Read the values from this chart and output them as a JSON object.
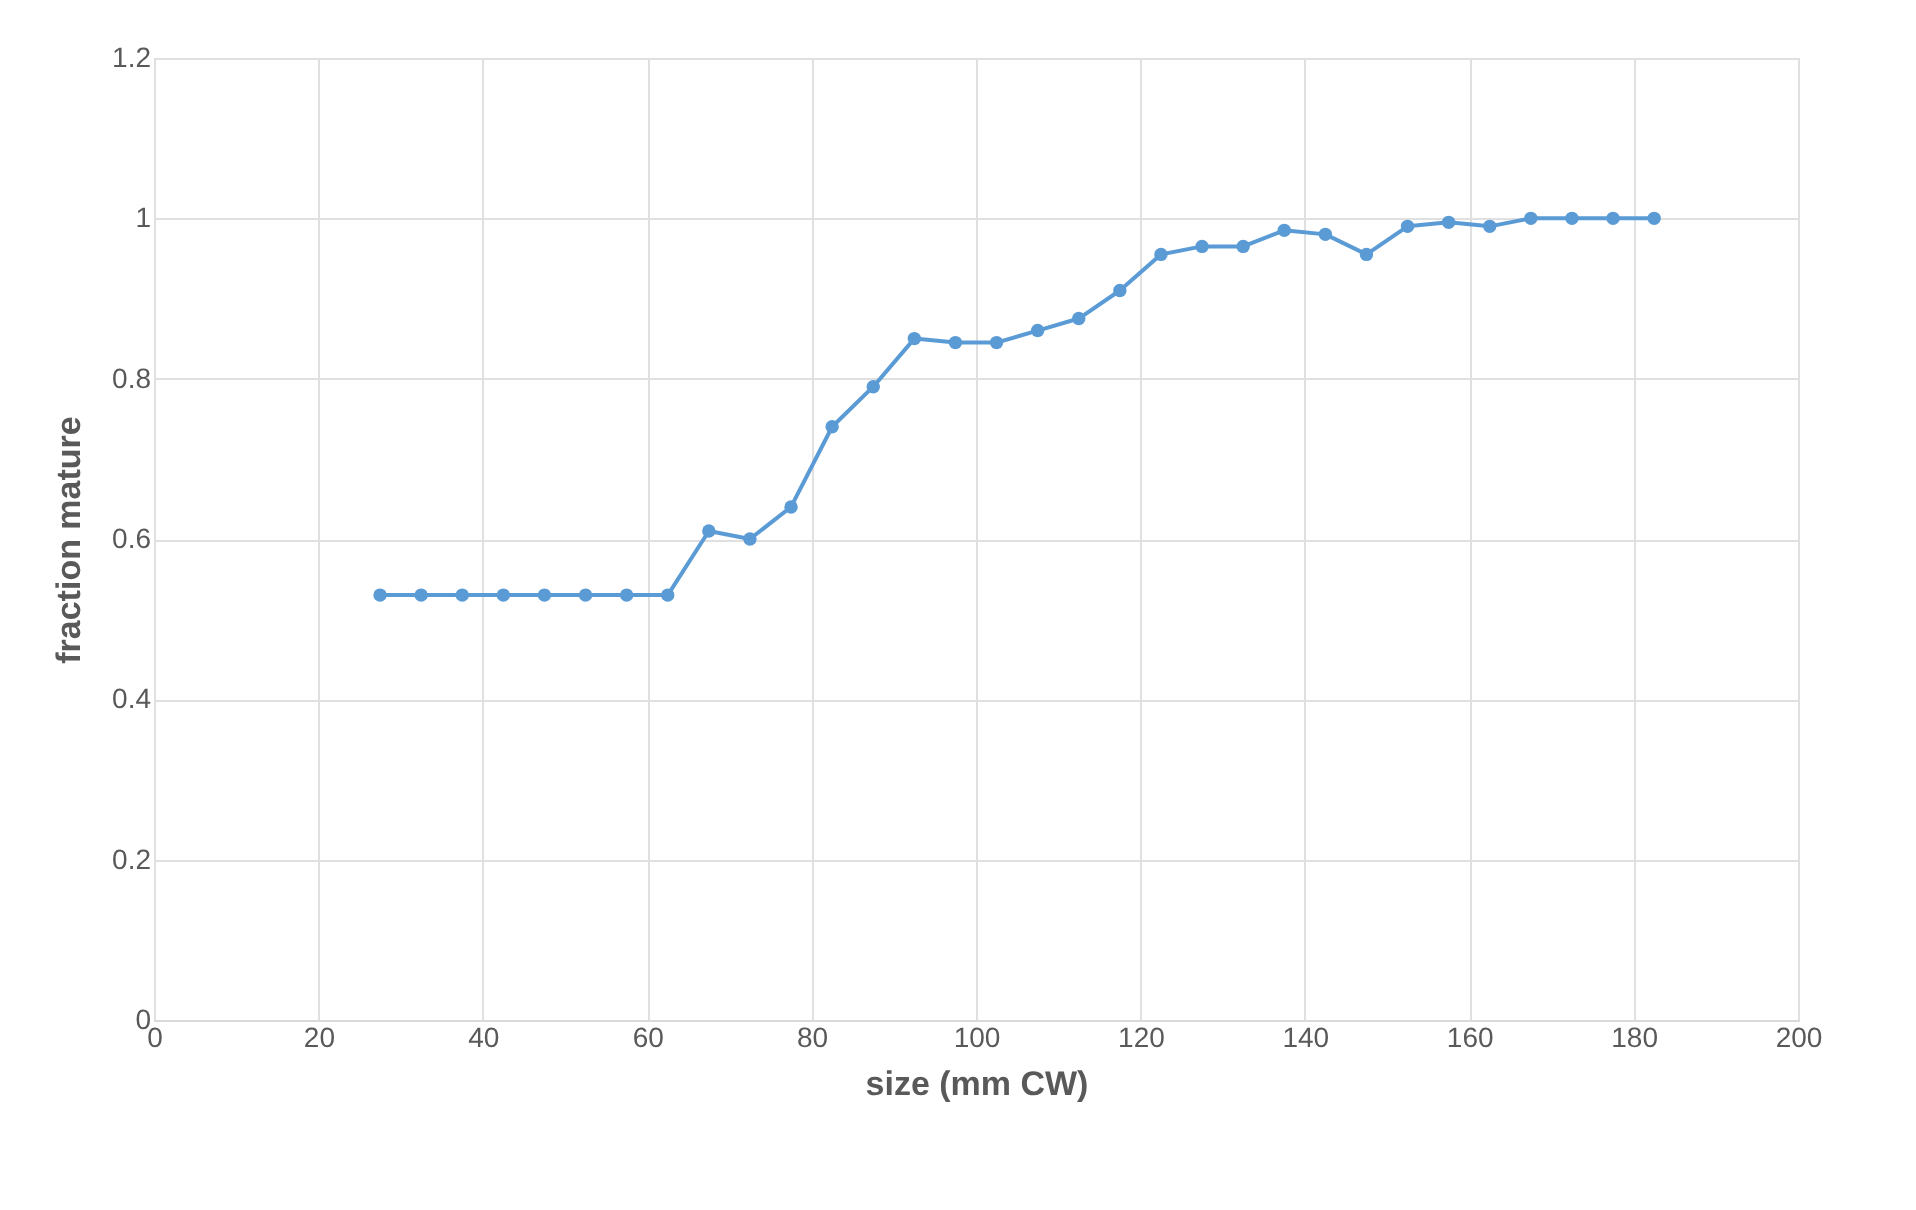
{
  "chart_data": {
    "type": "line",
    "xlabel": "size (mm CW)",
    "ylabel": "fraction mature",
    "x": [
      27.5,
      32.5,
      37.5,
      42.5,
      47.5,
      52.5,
      57.5,
      62.5,
      67.5,
      72.5,
      77.5,
      82.5,
      87.5,
      92.5,
      97.5,
      102.5,
      107.5,
      112.5,
      117.5,
      122.5,
      127.5,
      132.5,
      137.5,
      142.5,
      147.5,
      152.5,
      157.5,
      162.5,
      167.5,
      172.5,
      177.5,
      182.5
    ],
    "series": [
      {
        "color": "#5b9bd5",
        "values": [
          0.53,
          0.53,
          0.53,
          0.53,
          0.53,
          0.53,
          0.53,
          0.53,
          0.61,
          0.6,
          0.64,
          0.74,
          0.79,
          0.85,
          0.845,
          0.845,
          0.86,
          0.875,
          0.91,
          0.955,
          0.965,
          0.965,
          0.985,
          0.98,
          0.955,
          0.99,
          0.995,
          0.99,
          1,
          1,
          1,
          1
        ]
      }
    ],
    "xlim": [
      0,
      200
    ],
    "xticks": [
      0,
      20,
      40,
      60,
      80,
      100,
      120,
      140,
      160,
      180,
      200
    ],
    "ylim": [
      0,
      1.2
    ],
    "yticks": [
      0,
      0.2,
      0.4,
      0.6,
      0.8,
      1,
      1.2
    ],
    "grid": true,
    "marker": "circle",
    "line_style": "solid"
  }
}
